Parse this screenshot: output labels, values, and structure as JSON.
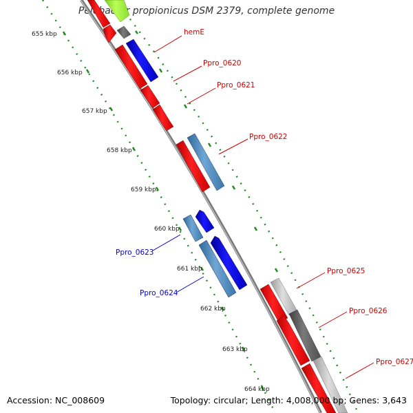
{
  "title": "Pelobacter propionicus DSM 2379, complete genome",
  "footer": {
    "accession": "Accession: NC_008609",
    "summary": "Topology: circular; Length: 4,008,000 bp; Genes: 3,643"
  },
  "colors": {
    "background": "#ffffff",
    "forward_label": "#cc0000",
    "reverse_label": "#0000cc",
    "backbone": "#888888",
    "ruler": "#228822",
    "gene_red": "#ff0000",
    "gene_blue": "#0000ee",
    "gene_steelblue": "#4a86b8",
    "gene_gray": "#666666",
    "gene_lightgray": "#bbbbbb",
    "gene_green": "#99ee33"
  },
  "kbp_labels": [
    "655 kbp",
    "656 kbp",
    "657 kbp",
    "658 kbp",
    "659 kbp",
    "660 kbp",
    "661 kbp",
    "662 kbp",
    "663 kbp",
    "664 kbp"
  ],
  "gene_labels": [
    {
      "text": "hemE",
      "strand": "forward"
    },
    {
      "text": "Ppro_0620",
      "strand": "forward"
    },
    {
      "text": "Ppro_0621",
      "strand": "forward"
    },
    {
      "text": "Ppro_0622",
      "strand": "forward"
    },
    {
      "text": "Ppro_0623",
      "strand": "reverse"
    },
    {
      "text": "Ppro_0624",
      "strand": "reverse"
    },
    {
      "text": "Ppro_0625",
      "strand": "forward"
    },
    {
      "text": "Ppro_0626",
      "strand": "forward"
    },
    {
      "text": "Ppro_0627",
      "strand": "forward"
    }
  ]
}
